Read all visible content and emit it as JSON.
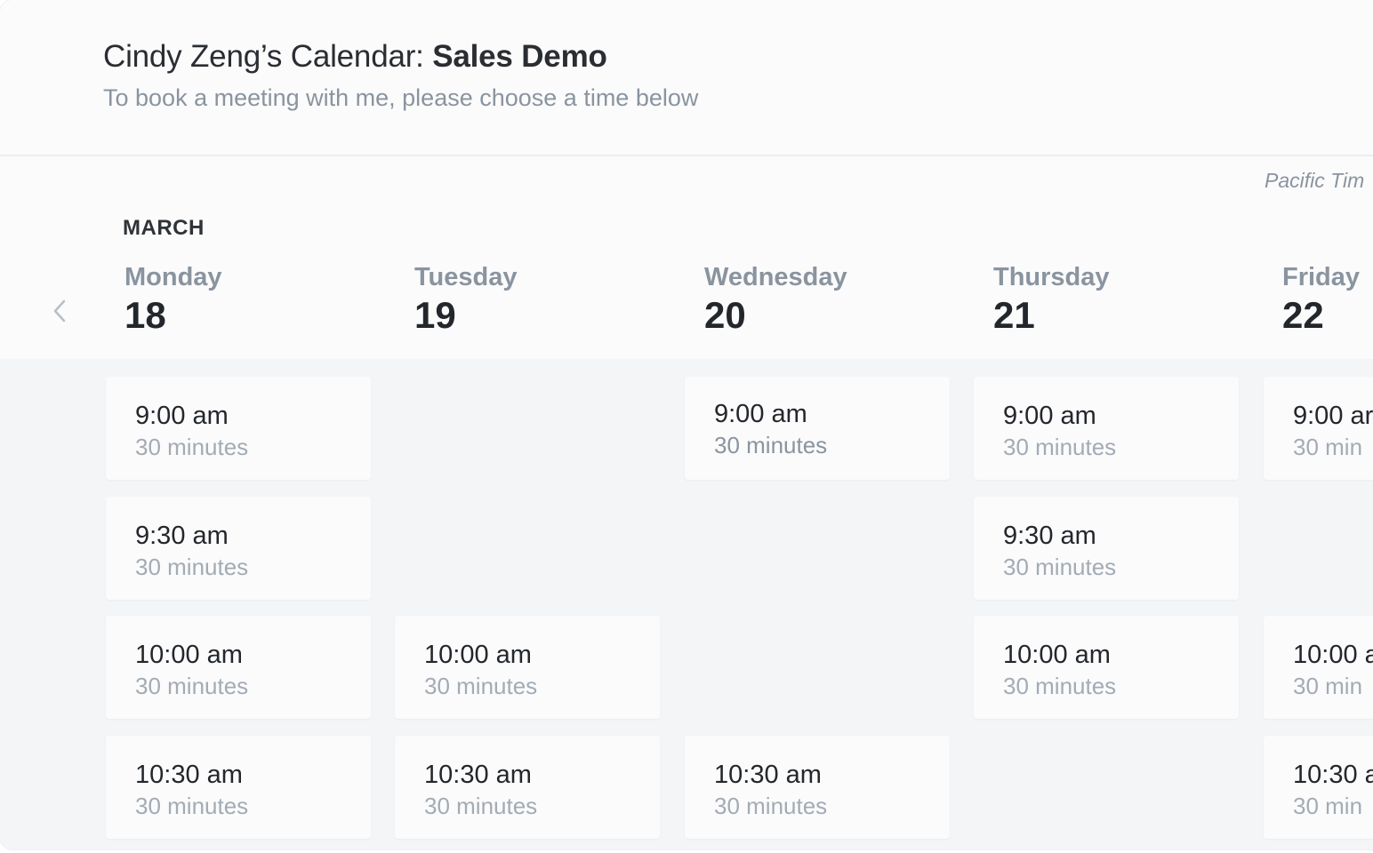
{
  "header": {
    "owner": "Cindy Zeng’s Calendar: ",
    "event": "Sales Demo",
    "subtitle": "To book a meeting with me, please choose a time below"
  },
  "timezone": "Pacific Tim",
  "month": "MARCH",
  "days": [
    {
      "name": "Monday",
      "number": "18"
    },
    {
      "name": "Tuesday",
      "number": "19"
    },
    {
      "name": "Wednesday",
      "number": "20"
    },
    {
      "name": "Thursday",
      "number": "21"
    },
    {
      "name": "Friday",
      "number": "22"
    }
  ],
  "slots": {
    "mon": [
      {
        "time": "9:00 am",
        "duration": "30 minutes"
      },
      {
        "time": "9:30 am",
        "duration": "30 minutes"
      },
      {
        "time": "10:00 am",
        "duration": "30 minutes"
      },
      {
        "time": "10:30 am",
        "duration": "30 minutes"
      }
    ],
    "tue": [
      {
        "time": "10:00 am",
        "duration": "30 minutes"
      },
      {
        "time": "10:30 am",
        "duration": "30 minutes"
      }
    ],
    "wed": [
      {
        "time": "9:00 am",
        "duration": "30 minutes"
      },
      {
        "time": "10:30 am",
        "duration": "30 minutes"
      }
    ],
    "thu": [
      {
        "time": "9:00 am",
        "duration": "30 minutes"
      },
      {
        "time": "9:30 am",
        "duration": "30 minutes"
      },
      {
        "time": "10:00 am",
        "duration": "30 minutes"
      }
    ],
    "fri": [
      {
        "time": "9:00 ar",
        "duration": "30 min"
      },
      {
        "time": "10:00 a",
        "duration": "30 min"
      },
      {
        "time": "10:30 a",
        "duration": "30 min"
      }
    ]
  },
  "colors": {
    "background": "#fbfbfc",
    "grid_background": "#f3f5f7",
    "muted_text": "#8a949f",
    "primary_text": "#23272b"
  }
}
